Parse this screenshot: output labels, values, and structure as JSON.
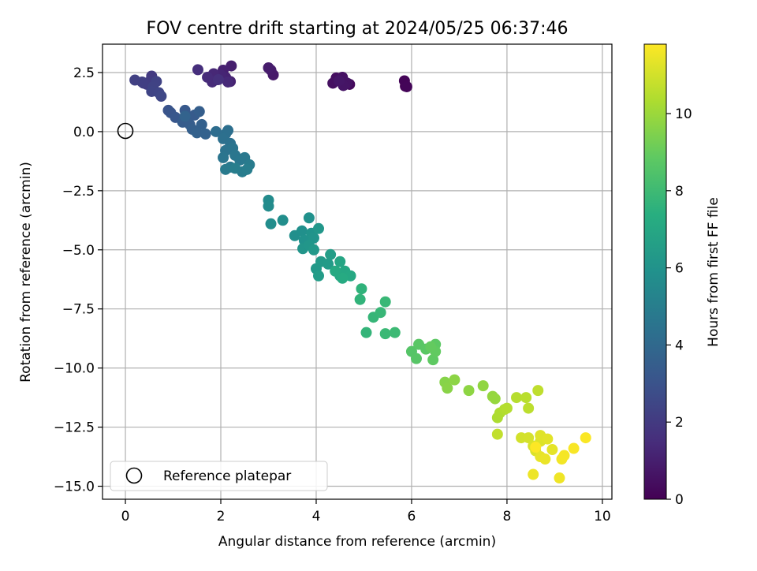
{
  "chart_data": {
    "type": "scatter",
    "title": "FOV centre drift starting at 2024/05/25 06:37:46",
    "xlabel": "Angular distance from reference (arcmin)",
    "ylabel": "Rotation from reference (arcmin)",
    "xlim": [
      -0.48,
      10.2
    ],
    "ylim": [
      -15.55,
      3.7
    ],
    "xticks": [
      0,
      2,
      4,
      6,
      8,
      10
    ],
    "yticks": [
      2.5,
      0.0,
      -2.5,
      -5.0,
      -7.5,
      -10.0,
      -12.5,
      -15.0
    ],
    "ytick_labels": [
      "2.5",
      "0.0",
      "−2.5",
      "−5.0",
      "−7.5",
      "−10.0",
      "−12.5",
      "−15.0"
    ],
    "grid": true,
    "colormap": "viridis",
    "colorbar": {
      "label": "Hours from first FF file",
      "range": [
        0,
        11.8
      ],
      "ticks": [
        0,
        2,
        4,
        6,
        8,
        10
      ]
    },
    "reference": {
      "x": 0,
      "y": 0,
      "label": "Reference platepar"
    },
    "legend": {
      "position": "lower-left",
      "entries": [
        "Reference platepar"
      ]
    },
    "points": [
      {
        "x": 5.87,
        "y": 1.92,
        "h": 0.05
      },
      {
        "x": 5.85,
        "y": 2.15,
        "h": 0.1
      },
      {
        "x": 5.9,
        "y": 1.9,
        "h": 0.15
      },
      {
        "x": 4.7,
        "y": 2.0,
        "h": 0.3
      },
      {
        "x": 4.6,
        "y": 2.1,
        "h": 0.35
      },
      {
        "x": 4.5,
        "y": 2.2,
        "h": 0.4
      },
      {
        "x": 4.42,
        "y": 2.27,
        "h": 0.45
      },
      {
        "x": 4.35,
        "y": 2.05,
        "h": 0.5
      },
      {
        "x": 4.55,
        "y": 2.3,
        "h": 0.55
      },
      {
        "x": 4.65,
        "y": 2.05,
        "h": 0.6
      },
      {
        "x": 4.57,
        "y": 1.95,
        "h": 0.65
      },
      {
        "x": 4.48,
        "y": 2.15,
        "h": 0.7
      },
      {
        "x": 3.1,
        "y": 2.4,
        "h": 0.8
      },
      {
        "x": 3.05,
        "y": 2.6,
        "h": 0.85
      },
      {
        "x": 3.0,
        "y": 2.7,
        "h": 0.9
      },
      {
        "x": 2.22,
        "y": 2.78,
        "h": 1.0
      },
      {
        "x": 2.05,
        "y": 2.6,
        "h": 1.05
      },
      {
        "x": 2.2,
        "y": 2.12,
        "h": 1.1
      },
      {
        "x": 2.1,
        "y": 2.3,
        "h": 1.15
      },
      {
        "x": 2.0,
        "y": 2.4,
        "h": 1.2
      },
      {
        "x": 1.92,
        "y": 2.2,
        "h": 1.25
      },
      {
        "x": 1.85,
        "y": 2.45,
        "h": 1.3
      },
      {
        "x": 2.15,
        "y": 2.1,
        "h": 1.35
      },
      {
        "x": 1.82,
        "y": 2.1,
        "h": 1.4
      },
      {
        "x": 1.72,
        "y": 2.3,
        "h": 1.45
      },
      {
        "x": 1.52,
        "y": 2.62,
        "h": 1.55
      },
      {
        "x": 1.95,
        "y": 2.2,
        "h": 1.6
      },
      {
        "x": 0.55,
        "y": 2.35,
        "h": 2.0
      },
      {
        "x": 0.5,
        "y": 2.1,
        "h": 2.05
      },
      {
        "x": 0.45,
        "y": 2.0,
        "h": 2.1
      },
      {
        "x": 0.38,
        "y": 2.05,
        "h": 2.15
      },
      {
        "x": 0.35,
        "y": 2.1,
        "h": 2.2
      },
      {
        "x": 0.2,
        "y": 2.18,
        "h": 2.25
      },
      {
        "x": 0.65,
        "y": 2.12,
        "h": 2.3
      },
      {
        "x": 0.58,
        "y": 1.9,
        "h": 2.35
      },
      {
        "x": 0.55,
        "y": 1.7,
        "h": 2.4
      },
      {
        "x": 0.7,
        "y": 1.65,
        "h": 2.45
      },
      {
        "x": 0.75,
        "y": 1.5,
        "h": 2.5
      },
      {
        "x": 0.9,
        "y": 0.9,
        "h": 3.0
      },
      {
        "x": 0.95,
        "y": 0.8,
        "h": 3.1
      },
      {
        "x": 1.05,
        "y": 0.6,
        "h": 3.2
      },
      {
        "x": 1.25,
        "y": 0.9,
        "h": 3.25
      },
      {
        "x": 1.3,
        "y": 0.5,
        "h": 3.3
      },
      {
        "x": 1.45,
        "y": 0.7,
        "h": 3.35
      },
      {
        "x": 1.2,
        "y": 0.4,
        "h": 3.4
      },
      {
        "x": 1.35,
        "y": 0.3,
        "h": 3.45
      },
      {
        "x": 1.55,
        "y": 0.85,
        "h": 3.5
      },
      {
        "x": 1.4,
        "y": 0.1,
        "h": 3.55
      },
      {
        "x": 1.6,
        "y": 0.3,
        "h": 3.6
      },
      {
        "x": 1.5,
        "y": -0.05,
        "h": 3.65
      },
      {
        "x": 1.68,
        "y": -0.1,
        "h": 3.7
      },
      {
        "x": 1.25,
        "y": 0.65,
        "h": 3.75
      },
      {
        "x": 1.9,
        "y": 0.0,
        "h": 4.2
      },
      {
        "x": 2.1,
        "y": -0.1,
        "h": 4.25
      },
      {
        "x": 2.15,
        "y": 0.05,
        "h": 4.3
      },
      {
        "x": 2.05,
        "y": -0.3,
        "h": 4.35
      },
      {
        "x": 2.2,
        "y": -0.5,
        "h": 4.4
      },
      {
        "x": 2.1,
        "y": -0.8,
        "h": 4.45
      },
      {
        "x": 2.25,
        "y": -0.7,
        "h": 4.5
      },
      {
        "x": 2.05,
        "y": -1.1,
        "h": 4.55
      },
      {
        "x": 2.3,
        "y": -1.0,
        "h": 4.6
      },
      {
        "x": 2.4,
        "y": -1.2,
        "h": 4.65
      },
      {
        "x": 2.5,
        "y": -1.1,
        "h": 4.7
      },
      {
        "x": 2.2,
        "y": -1.5,
        "h": 4.75
      },
      {
        "x": 2.1,
        "y": -1.6,
        "h": 4.8
      },
      {
        "x": 2.6,
        "y": -1.4,
        "h": 4.85
      },
      {
        "x": 2.45,
        "y": -1.7,
        "h": 4.9
      },
      {
        "x": 2.55,
        "y": -1.6,
        "h": 4.95
      },
      {
        "x": 2.3,
        "y": -1.55,
        "h": 5.0
      },
      {
        "x": 3.0,
        "y": -2.9,
        "h": 5.6
      },
      {
        "x": 3.0,
        "y": -3.15,
        "h": 5.65
      },
      {
        "x": 3.05,
        "y": -3.9,
        "h": 5.7
      },
      {
        "x": 3.3,
        "y": -3.75,
        "h": 5.75
      },
      {
        "x": 3.55,
        "y": -4.4,
        "h": 5.8
      },
      {
        "x": 3.7,
        "y": -4.2,
        "h": 5.85
      },
      {
        "x": 3.85,
        "y": -3.65,
        "h": 5.9
      },
      {
        "x": 3.75,
        "y": -4.6,
        "h": 5.95
      },
      {
        "x": 3.9,
        "y": -4.3,
        "h": 6.0
      },
      {
        "x": 3.95,
        "y": -4.5,
        "h": 6.05
      },
      {
        "x": 3.72,
        "y": -4.95,
        "h": 6.1
      },
      {
        "x": 3.85,
        "y": -4.8,
        "h": 6.15
      },
      {
        "x": 4.05,
        "y": -4.1,
        "h": 6.2
      },
      {
        "x": 3.95,
        "y": -5.0,
        "h": 6.25
      },
      {
        "x": 4.0,
        "y": -5.8,
        "h": 6.3
      },
      {
        "x": 4.1,
        "y": -5.5,
        "h": 6.35
      },
      {
        "x": 4.25,
        "y": -5.6,
        "h": 6.4
      },
      {
        "x": 4.05,
        "y": -6.1,
        "h": 6.45
      },
      {
        "x": 4.3,
        "y": -5.2,
        "h": 6.5
      },
      {
        "x": 4.5,
        "y": -5.5,
        "h": 6.9
      },
      {
        "x": 4.5,
        "y": -6.1,
        "h": 6.95
      },
      {
        "x": 4.6,
        "y": -5.9,
        "h": 7.0
      },
      {
        "x": 4.72,
        "y": -6.1,
        "h": 7.05
      },
      {
        "x": 4.4,
        "y": -5.9,
        "h": 7.1
      },
      {
        "x": 4.55,
        "y": -6.2,
        "h": 7.15
      },
      {
        "x": 4.95,
        "y": -6.65,
        "h": 7.6
      },
      {
        "x": 4.92,
        "y": -7.1,
        "h": 7.65
      },
      {
        "x": 5.05,
        "y": -8.5,
        "h": 7.7
      },
      {
        "x": 5.2,
        "y": -7.85,
        "h": 7.75
      },
      {
        "x": 5.35,
        "y": -7.65,
        "h": 7.8
      },
      {
        "x": 5.45,
        "y": -7.2,
        "h": 7.85
      },
      {
        "x": 5.45,
        "y": -8.55,
        "h": 7.9
      },
      {
        "x": 5.65,
        "y": -8.5,
        "h": 7.95
      },
      {
        "x": 6.0,
        "y": -9.3,
        "h": 8.6
      },
      {
        "x": 6.1,
        "y": -9.6,
        "h": 8.65
      },
      {
        "x": 6.15,
        "y": -9.0,
        "h": 8.7
      },
      {
        "x": 6.3,
        "y": -9.2,
        "h": 8.75
      },
      {
        "x": 6.5,
        "y": -9.0,
        "h": 8.8
      },
      {
        "x": 6.45,
        "y": -9.65,
        "h": 8.85
      },
      {
        "x": 6.5,
        "y": -9.3,
        "h": 8.9
      },
      {
        "x": 6.4,
        "y": -9.1,
        "h": 8.95
      },
      {
        "x": 6.7,
        "y": -10.6,
        "h": 9.6
      },
      {
        "x": 6.75,
        "y": -10.85,
        "h": 9.65
      },
      {
        "x": 6.9,
        "y": -10.5,
        "h": 9.7
      },
      {
        "x": 7.2,
        "y": -10.95,
        "h": 9.75
      },
      {
        "x": 7.5,
        "y": -10.75,
        "h": 9.8
      },
      {
        "x": 7.7,
        "y": -11.2,
        "h": 9.85
      },
      {
        "x": 7.75,
        "y": -11.3,
        "h": 9.9
      },
      {
        "x": 7.8,
        "y": -12.1,
        "h": 10.3
      },
      {
        "x": 7.85,
        "y": -11.9,
        "h": 10.35
      },
      {
        "x": 7.95,
        "y": -11.75,
        "h": 10.4
      },
      {
        "x": 8.0,
        "y": -11.7,
        "h": 10.45
      },
      {
        "x": 8.2,
        "y": -11.25,
        "h": 10.5
      },
      {
        "x": 8.4,
        "y": -11.25,
        "h": 10.55
      },
      {
        "x": 8.45,
        "y": -11.7,
        "h": 10.6
      },
      {
        "x": 8.65,
        "y": -10.95,
        "h": 10.65
      },
      {
        "x": 7.8,
        "y": -12.8,
        "h": 10.7
      },
      {
        "x": 8.3,
        "y": -12.95,
        "h": 11.0
      },
      {
        "x": 8.45,
        "y": -12.95,
        "h": 11.05
      },
      {
        "x": 8.55,
        "y": -13.3,
        "h": 11.1
      },
      {
        "x": 8.6,
        "y": -13.5,
        "h": 11.15
      },
      {
        "x": 8.7,
        "y": -13.1,
        "h": 11.2
      },
      {
        "x": 8.7,
        "y": -12.85,
        "h": 11.25
      },
      {
        "x": 8.85,
        "y": -13.0,
        "h": 11.3
      },
      {
        "x": 8.95,
        "y": -13.45,
        "h": 11.35
      },
      {
        "x": 8.7,
        "y": -13.75,
        "h": 11.4
      },
      {
        "x": 8.8,
        "y": -13.85,
        "h": 11.45
      },
      {
        "x": 8.55,
        "y": -14.5,
        "h": 11.5
      },
      {
        "x": 9.1,
        "y": -14.65,
        "h": 11.55
      },
      {
        "x": 9.15,
        "y": -13.85,
        "h": 11.6
      },
      {
        "x": 9.2,
        "y": -13.7,
        "h": 11.65
      },
      {
        "x": 9.4,
        "y": -13.4,
        "h": 11.7
      },
      {
        "x": 9.65,
        "y": -12.95,
        "h": 11.75
      },
      {
        "x": 8.6,
        "y": -13.35,
        "h": 11.78
      }
    ]
  }
}
